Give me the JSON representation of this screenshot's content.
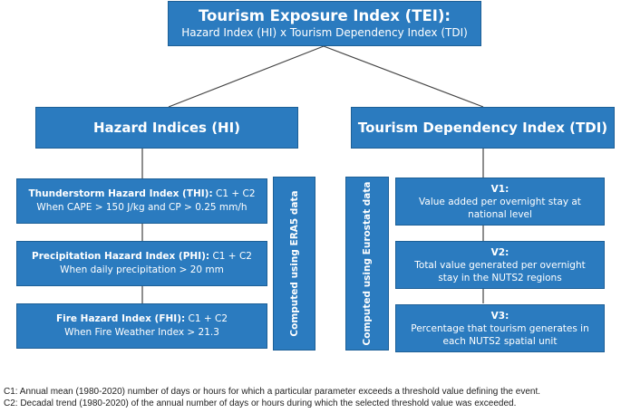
{
  "top": {
    "title": "Tourism Exposure Index (TEI):",
    "subtitle": "Hazard Index (HI) x Tourism Dependency Index (TDI)"
  },
  "hazard_header": "Hazard Indices (HI)",
  "tdi_header": "Tourism Dependency Index (TDI)",
  "hazards": [
    {
      "name": "Thunderstorm Hazard Index (THI):",
      "suffix": "C1 + C2",
      "condition": "When CAPE > 150 J/kg and CP > 0.25 mm/h"
    },
    {
      "name": "Precipitation Hazard Index (PHI):",
      "suffix": "C1 + C2",
      "condition": "When daily precipitation > 20 mm"
    },
    {
      "name": "Fire Hazard Index (FHI):",
      "suffix": "C1 + C2",
      "condition": "When Fire Weather Index > 21.3"
    }
  ],
  "era5_label": "Computed using ERA5 data",
  "eurostat_label": "Computed using Eurostat data",
  "tdi_items": [
    {
      "code": "V1:",
      "text": "Value added per overnight stay at national level"
    },
    {
      "code": "V2:",
      "text": "Total value generated per overnight stay in the NUTS2 regions"
    },
    {
      "code": "V3:",
      "text": "Percentage that tourism generates in each NUTS2 spatial unit"
    }
  ],
  "footnotes": [
    "C1: Annual mean (1980-2020) number of days or hours for which a particular parameter exceeds a threshold value defining the event.",
    "C2: Decadal trend (1980-2020) of the annual number of days or hours during which the selected threshold value was exceeded."
  ],
  "colors": {
    "box": "#2b7bbf",
    "line": "#444444"
  }
}
